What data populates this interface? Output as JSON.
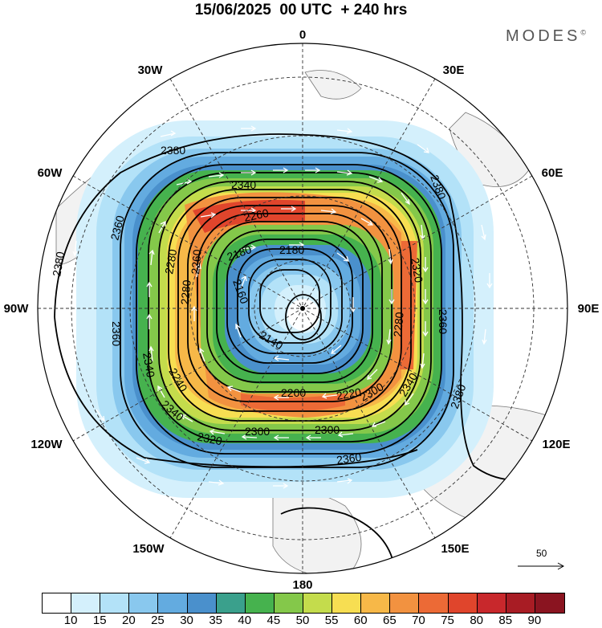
{
  "title": "15/06/2025  00 UTC  + 240 hrs",
  "brand": "MODES",
  "brand_mark": "©",
  "longitude_labels": [
    {
      "text": "0",
      "lon": 0
    },
    {
      "text": "30E",
      "lon": 30
    },
    {
      "text": "60E",
      "lon": 60
    },
    {
      "text": "90E",
      "lon": 90
    },
    {
      "text": "120E",
      "lon": 120
    },
    {
      "text": "150E",
      "lon": 150
    },
    {
      "text": "180",
      "lon": 180
    },
    {
      "text": "150W",
      "lon": -150
    },
    {
      "text": "120W",
      "lon": -120
    },
    {
      "text": "90W",
      "lon": -90
    },
    {
      "text": "60W",
      "lon": -60
    },
    {
      "text": "30W",
      "lon": -30
    }
  ],
  "contour_labels": [
    "2380",
    "2380",
    "2380",
    "2340",
    "2360",
    "2360",
    "2340",
    "2340",
    "2320",
    "2300",
    "2300",
    "2280",
    "2280",
    "2260",
    "2260",
    "2240",
    "2220",
    "2200",
    "2180",
    "2180",
    "2160",
    "2140",
    "2300",
    "2320",
    "2360",
    "2380",
    "2340",
    "2280",
    "2360"
  ],
  "colorbar": {
    "ticks": [
      "10",
      "15",
      "20",
      "25",
      "30",
      "35",
      "40",
      "45",
      "50",
      "55",
      "60",
      "65",
      "70",
      "75",
      "80",
      "85",
      "90"
    ],
    "colors": [
      "#ffffff",
      "#d4f0fc",
      "#b3e2f8",
      "#89c8ee",
      "#63abe0",
      "#4a90cc",
      "#3aa08c",
      "#46b24e",
      "#84c84a",
      "#c4dc4c",
      "#f7de52",
      "#f7b848",
      "#f29240",
      "#ec6a36",
      "#e0452c",
      "#c8282c",
      "#a81c24",
      "#8a1420"
    ]
  },
  "reference_vector": {
    "label": "50"
  }
}
